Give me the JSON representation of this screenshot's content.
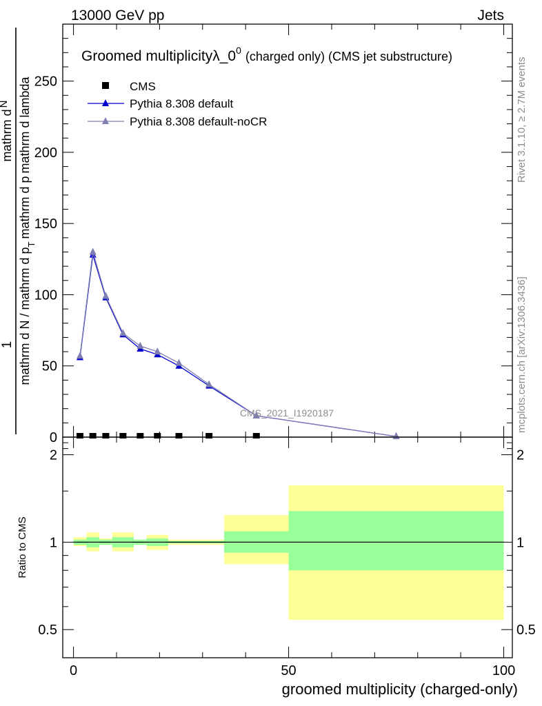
{
  "header": {
    "left": "13000 GeV pp",
    "right": "Jets"
  },
  "side_text": {
    "top": "Rivet 3.1.10, ≥ 2.7M events",
    "bottom": "mcplots.cern.ch [arXiv:1306.3436]"
  },
  "colors": {
    "default": "#0000cc",
    "nocr": "#7f7fb2",
    "band_inner": "#99ff99",
    "band_outer": "#ffff99",
    "data": "#000000"
  },
  "chart_data": [
    {
      "type": "line",
      "title_main": "Groomed multiplicityλ_0",
      "title_sup": "0",
      "title_tail": "(charged only) (CMS jet substructure)",
      "analysis_label": "CMS_2021_I1920187",
      "ylabel_numerator": "1",
      "ylabel_main": "mathrm d N / mathrm d p",
      "ylabel_sub": "T",
      "ylabel_tail": "mathrm d lambda",
      "ylabel_top": "mathrm d",
      "ylabel_top2": "N",
      "ylabel_top3": "mathrm d p",
      "ylabel_top4": "mathrm d lambda",
      "ylim": [
        0,
        290
      ],
      "xlim": [
        -2.5,
        102
      ],
      "y_ticks": [
        0,
        50,
        100,
        150,
        200,
        250
      ],
      "y_tick_labels": [
        "0",
        "50",
        "100",
        "150",
        "200",
        "250"
      ],
      "legend": [
        {
          "label": "CMS",
          "marker": "square"
        },
        {
          "label": "Pythia 8.308 default",
          "marker": "triangle"
        },
        {
          "label": "Pythia 8.308 default-noCR",
          "marker": "triangle"
        }
      ],
      "series": [
        {
          "name": "CMS",
          "x": [
            1.5,
            4.5,
            7.5,
            11.5,
            15.5,
            19.5,
            24.5,
            31.5,
            42.5
          ],
          "y": [
            0,
            0,
            0,
            0,
            0,
            0,
            0,
            0,
            0
          ]
        },
        {
          "name": "Pythia 8.308 default",
          "x": [
            1.5,
            4.5,
            7.5,
            11.5,
            15.5,
            19.5,
            24.5,
            31.5,
            42.5,
            75
          ],
          "y": [
            56,
            128,
            98,
            72,
            62,
            58,
            50,
            36,
            15,
            0.5
          ]
        },
        {
          "name": "Pythia 8.308 default-noCR",
          "x": [
            1.5,
            4.5,
            7.5,
            11.5,
            15.5,
            19.5,
            24.5,
            31.5,
            42.5,
            75
          ],
          "y": [
            57,
            130,
            99,
            73,
            64,
            60,
            52,
            37,
            15,
            0.5
          ]
        }
      ]
    },
    {
      "type": "area",
      "ylabel": "Ratio to CMS",
      "xlabel": "groomed multiplicity (charged-only)",
      "xlim": [
        -2.5,
        102
      ],
      "ylim": [
        0.4,
        2.3
      ],
      "x_ticks": [
        0,
        50,
        100
      ],
      "x_tick_labels": [
        "0",
        "50",
        "100"
      ],
      "y_ticks": [
        0.5,
        1,
        2
      ],
      "y_tick_labels": [
        "0.5",
        "1",
        "2"
      ],
      "reference_line": 1,
      "bins": [
        {
          "x0": 0,
          "x1": 3,
          "inner": [
            0.98,
            1.02
          ],
          "outer": [
            0.97,
            1.04
          ]
        },
        {
          "x0": 3,
          "x1": 6,
          "inner": [
            0.96,
            1.04
          ],
          "outer": [
            0.93,
            1.08
          ]
        },
        {
          "x0": 6,
          "x1": 9,
          "inner": [
            0.98,
            1.02
          ],
          "outer": [
            0.98,
            1.03
          ]
        },
        {
          "x0": 9,
          "x1": 14,
          "inner": [
            0.96,
            1.04
          ],
          "outer": [
            0.93,
            1.08
          ]
        },
        {
          "x0": 14,
          "x1": 17,
          "inner": [
            0.98,
            1.02
          ],
          "outer": [
            0.98,
            1.02
          ]
        },
        {
          "x0": 17,
          "x1": 22,
          "inner": [
            0.97,
            1.03
          ],
          "outer": [
            0.94,
            1.06
          ]
        },
        {
          "x0": 22,
          "x1": 35,
          "inner": [
            0.99,
            1.01
          ],
          "outer": [
            0.98,
            1.02
          ]
        },
        {
          "x0": 35,
          "x1": 50,
          "inner": [
            0.92,
            1.09
          ],
          "outer": [
            0.84,
            1.24
          ]
        },
        {
          "x0": 50,
          "x1": 100,
          "inner": [
            0.8,
            1.28
          ],
          "outer": [
            0.54,
            1.57
          ]
        }
      ]
    }
  ]
}
